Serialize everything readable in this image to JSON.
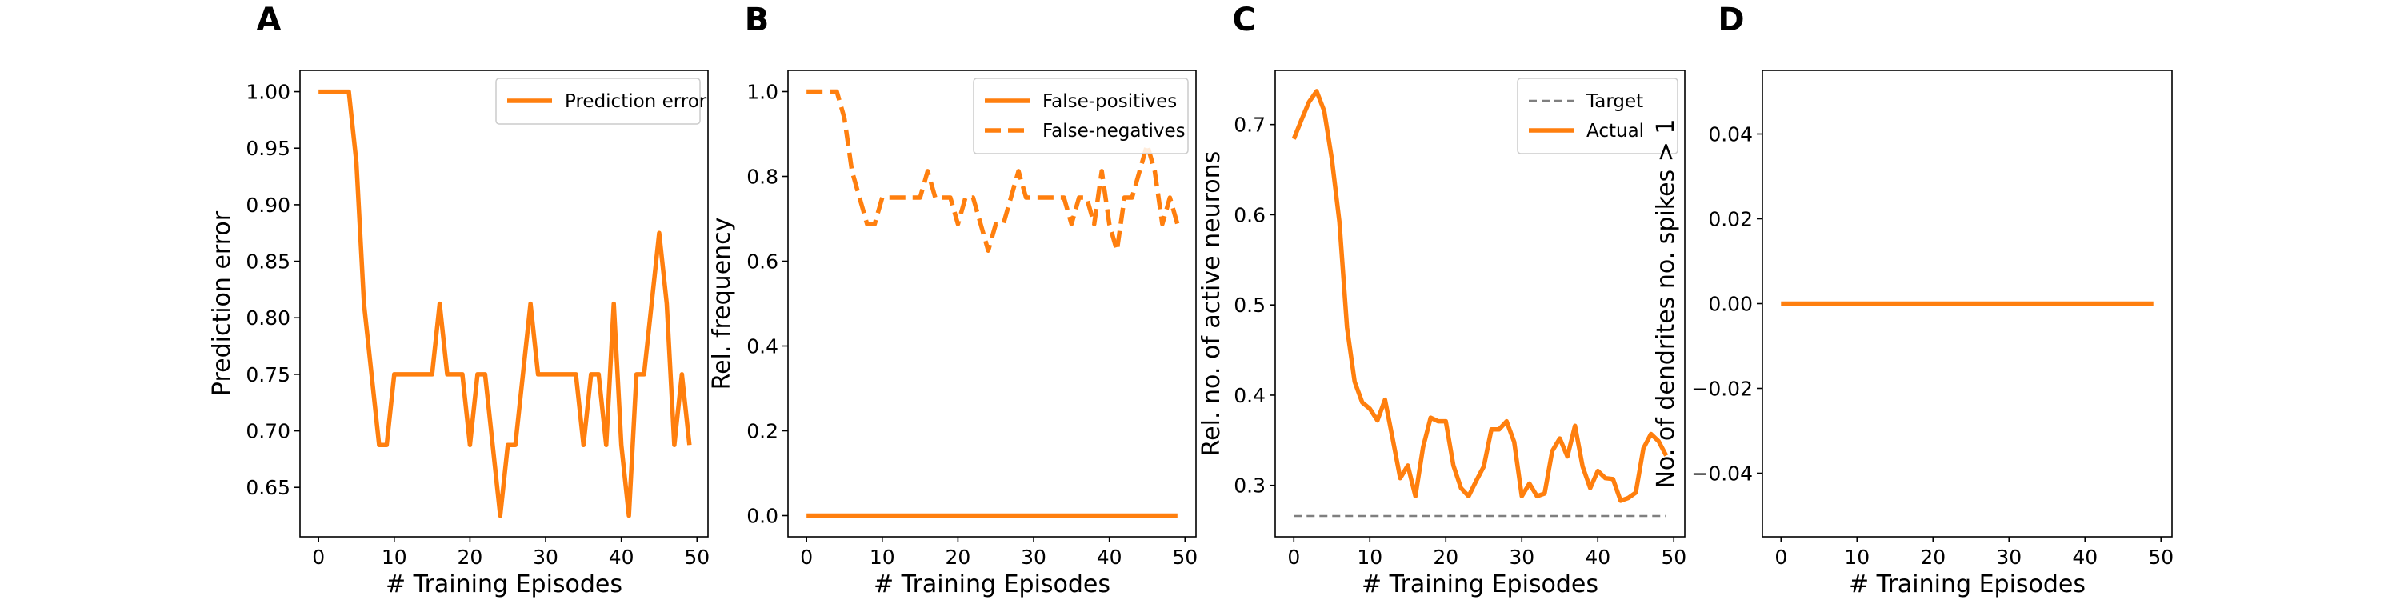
{
  "chart_data": [
    {
      "type": "line",
      "panel": "A",
      "xlabel": "# Training Episodes",
      "ylabel": "Prediction error",
      "xlim": [
        -2.45,
        51.45
      ],
      "ylim": [
        0.6063,
        1.0188
      ],
      "xticks": [
        0,
        10,
        20,
        30,
        40,
        50
      ],
      "yticks": [
        0.65,
        0.7,
        0.75,
        0.8,
        0.85,
        0.9,
        0.95,
        1.0
      ],
      "ytick_labels": [
        "0.65",
        "0.70",
        "0.75",
        "0.80",
        "0.85",
        "0.90",
        "0.95",
        "1.00"
      ],
      "legend": {
        "position": "top-right"
      },
      "series": [
        {
          "name": "Prediction error",
          "color": "#ff7f0e",
          "style": "solid",
          "x": [
            0,
            1,
            2,
            3,
            4,
            5,
            6,
            7,
            8,
            9,
            10,
            11,
            12,
            13,
            14,
            15,
            16,
            17,
            18,
            19,
            20,
            21,
            22,
            23,
            24,
            25,
            26,
            27,
            28,
            29,
            30,
            31,
            32,
            33,
            34,
            35,
            36,
            37,
            38,
            39,
            40,
            41,
            42,
            43,
            44,
            45,
            46,
            47,
            48,
            49
          ],
          "values": [
            1.0,
            1.0,
            1.0,
            1.0,
            1.0,
            0.9375,
            0.8125,
            0.75,
            0.6875,
            0.6875,
            0.75,
            0.75,
            0.75,
            0.75,
            0.75,
            0.75,
            0.8125,
            0.75,
            0.75,
            0.75,
            0.6875,
            0.75,
            0.75,
            0.6875,
            0.625,
            0.6875,
            0.6875,
            0.75,
            0.8125,
            0.75,
            0.75,
            0.75,
            0.75,
            0.75,
            0.75,
            0.6875,
            0.75,
            0.75,
            0.6875,
            0.8125,
            0.6875,
            0.625,
            0.75,
            0.75,
            0.8125,
            0.875,
            0.8125,
            0.6875,
            0.75,
            0.6875
          ]
        }
      ]
    },
    {
      "type": "line",
      "panel": "B",
      "xlabel": "# Training Episodes",
      "ylabel": "Rel. frequency",
      "xlim": [
        -2.45,
        51.45
      ],
      "ylim": [
        -0.05,
        1.05
      ],
      "xticks": [
        0,
        10,
        20,
        30,
        40,
        50
      ],
      "yticks": [
        0.0,
        0.2,
        0.4,
        0.6,
        0.8,
        1.0
      ],
      "ytick_labels": [
        "0.0",
        "0.2",
        "0.4",
        "0.6",
        "0.8",
        "1.0"
      ],
      "legend": {
        "position": "top-right"
      },
      "series": [
        {
          "name": "False-positives",
          "color": "#ff7f0e",
          "style": "solid",
          "x": [
            0,
            1,
            2,
            3,
            4,
            5,
            6,
            7,
            8,
            9,
            10,
            11,
            12,
            13,
            14,
            15,
            16,
            17,
            18,
            19,
            20,
            21,
            22,
            23,
            24,
            25,
            26,
            27,
            28,
            29,
            30,
            31,
            32,
            33,
            34,
            35,
            36,
            37,
            38,
            39,
            40,
            41,
            42,
            43,
            44,
            45,
            46,
            47,
            48,
            49
          ],
          "values": [
            0,
            0,
            0,
            0,
            0,
            0,
            0,
            0,
            0,
            0,
            0,
            0,
            0,
            0,
            0,
            0,
            0,
            0,
            0,
            0,
            0,
            0,
            0,
            0,
            0,
            0,
            0,
            0,
            0,
            0,
            0,
            0,
            0,
            0,
            0,
            0,
            0,
            0,
            0,
            0,
            0,
            0,
            0,
            0,
            0,
            0,
            0,
            0,
            0,
            0
          ]
        },
        {
          "name": "False-negatives",
          "color": "#ff7f0e",
          "style": "dashed",
          "x": [
            0,
            1,
            2,
            3,
            4,
            5,
            6,
            7,
            8,
            9,
            10,
            11,
            12,
            13,
            14,
            15,
            16,
            17,
            18,
            19,
            20,
            21,
            22,
            23,
            24,
            25,
            26,
            27,
            28,
            29,
            30,
            31,
            32,
            33,
            34,
            35,
            36,
            37,
            38,
            39,
            40,
            41,
            42,
            43,
            44,
            45,
            46,
            47,
            48,
            49
          ],
          "values": [
            1.0,
            1.0,
            1.0,
            1.0,
            1.0,
            0.9375,
            0.8125,
            0.75,
            0.6875,
            0.6875,
            0.75,
            0.75,
            0.75,
            0.75,
            0.75,
            0.75,
            0.8125,
            0.75,
            0.75,
            0.75,
            0.6875,
            0.75,
            0.75,
            0.6875,
            0.625,
            0.6875,
            0.6875,
            0.75,
            0.8125,
            0.75,
            0.75,
            0.75,
            0.75,
            0.75,
            0.75,
            0.6875,
            0.75,
            0.75,
            0.6875,
            0.8125,
            0.6875,
            0.625,
            0.75,
            0.75,
            0.8125,
            0.875,
            0.8125,
            0.6875,
            0.75,
            0.6875
          ]
        }
      ]
    },
    {
      "type": "line",
      "panel": "C",
      "xlabel": "# Training Episodes",
      "ylabel": "Rel. no. of active neurons",
      "xlim": [
        -2.45,
        51.45
      ],
      "ylim": [
        0.243,
        0.76
      ],
      "xticks": [
        0,
        10,
        20,
        30,
        40,
        50
      ],
      "yticks": [
        0.3,
        0.4,
        0.5,
        0.6,
        0.7
      ],
      "ytick_labels": [
        "0.3",
        "0.4",
        "0.5",
        "0.6",
        "0.7"
      ],
      "legend": {
        "position": "top-right"
      },
      "series": [
        {
          "name": "Target",
          "color": "#7f7f7f",
          "style": "dashed",
          "x": [
            0,
            49
          ],
          "values": [
            0.266,
            0.266
          ]
        },
        {
          "name": "Actual",
          "color": "#ff7f0e",
          "style": "solid",
          "x": [
            0,
            1,
            2,
            3,
            4,
            5,
            6,
            7,
            8,
            9,
            10,
            11,
            12,
            13,
            14,
            15,
            16,
            17,
            18,
            19,
            20,
            21,
            22,
            23,
            24,
            25,
            26,
            27,
            28,
            29,
            30,
            31,
            32,
            33,
            34,
            35,
            36,
            37,
            38,
            39,
            40,
            41,
            42,
            43,
            44,
            45,
            46,
            47,
            48,
            49
          ],
          "values": [
            0.684,
            0.705,
            0.725,
            0.737,
            0.715,
            0.662,
            0.592,
            0.475,
            0.415,
            0.392,
            0.385,
            0.372,
            0.395,
            0.352,
            0.308,
            0.322,
            0.288,
            0.342,
            0.375,
            0.371,
            0.371,
            0.322,
            0.297,
            0.288,
            0.305,
            0.321,
            0.362,
            0.362,
            0.371,
            0.348,
            0.288,
            0.302,
            0.288,
            0.291,
            0.338,
            0.352,
            0.332,
            0.366,
            0.321,
            0.297,
            0.316,
            0.308,
            0.307,
            0.283,
            0.286,
            0.292,
            0.341,
            0.357,
            0.349,
            0.333
          ]
        }
      ]
    },
    {
      "type": "line",
      "panel": "D",
      "xlabel": "# Training Episodes",
      "ylabel": "No. of dendrites no. spikes > 1",
      "xlim": [
        -2.45,
        51.45
      ],
      "ylim": [
        -0.055,
        0.055
      ],
      "xticks": [
        0,
        10,
        20,
        30,
        40,
        50
      ],
      "yticks": [
        -0.04,
        -0.02,
        0.0,
        0.02,
        0.04
      ],
      "ytick_labels": [
        "−0.04",
        "−0.02",
        "0.00",
        "0.02",
        "0.04"
      ],
      "legend": null,
      "series": [
        {
          "color": "#ff7f0e",
          "style": "solid",
          "x": [
            0,
            49
          ],
          "values": [
            0,
            0
          ]
        }
      ]
    }
  ]
}
